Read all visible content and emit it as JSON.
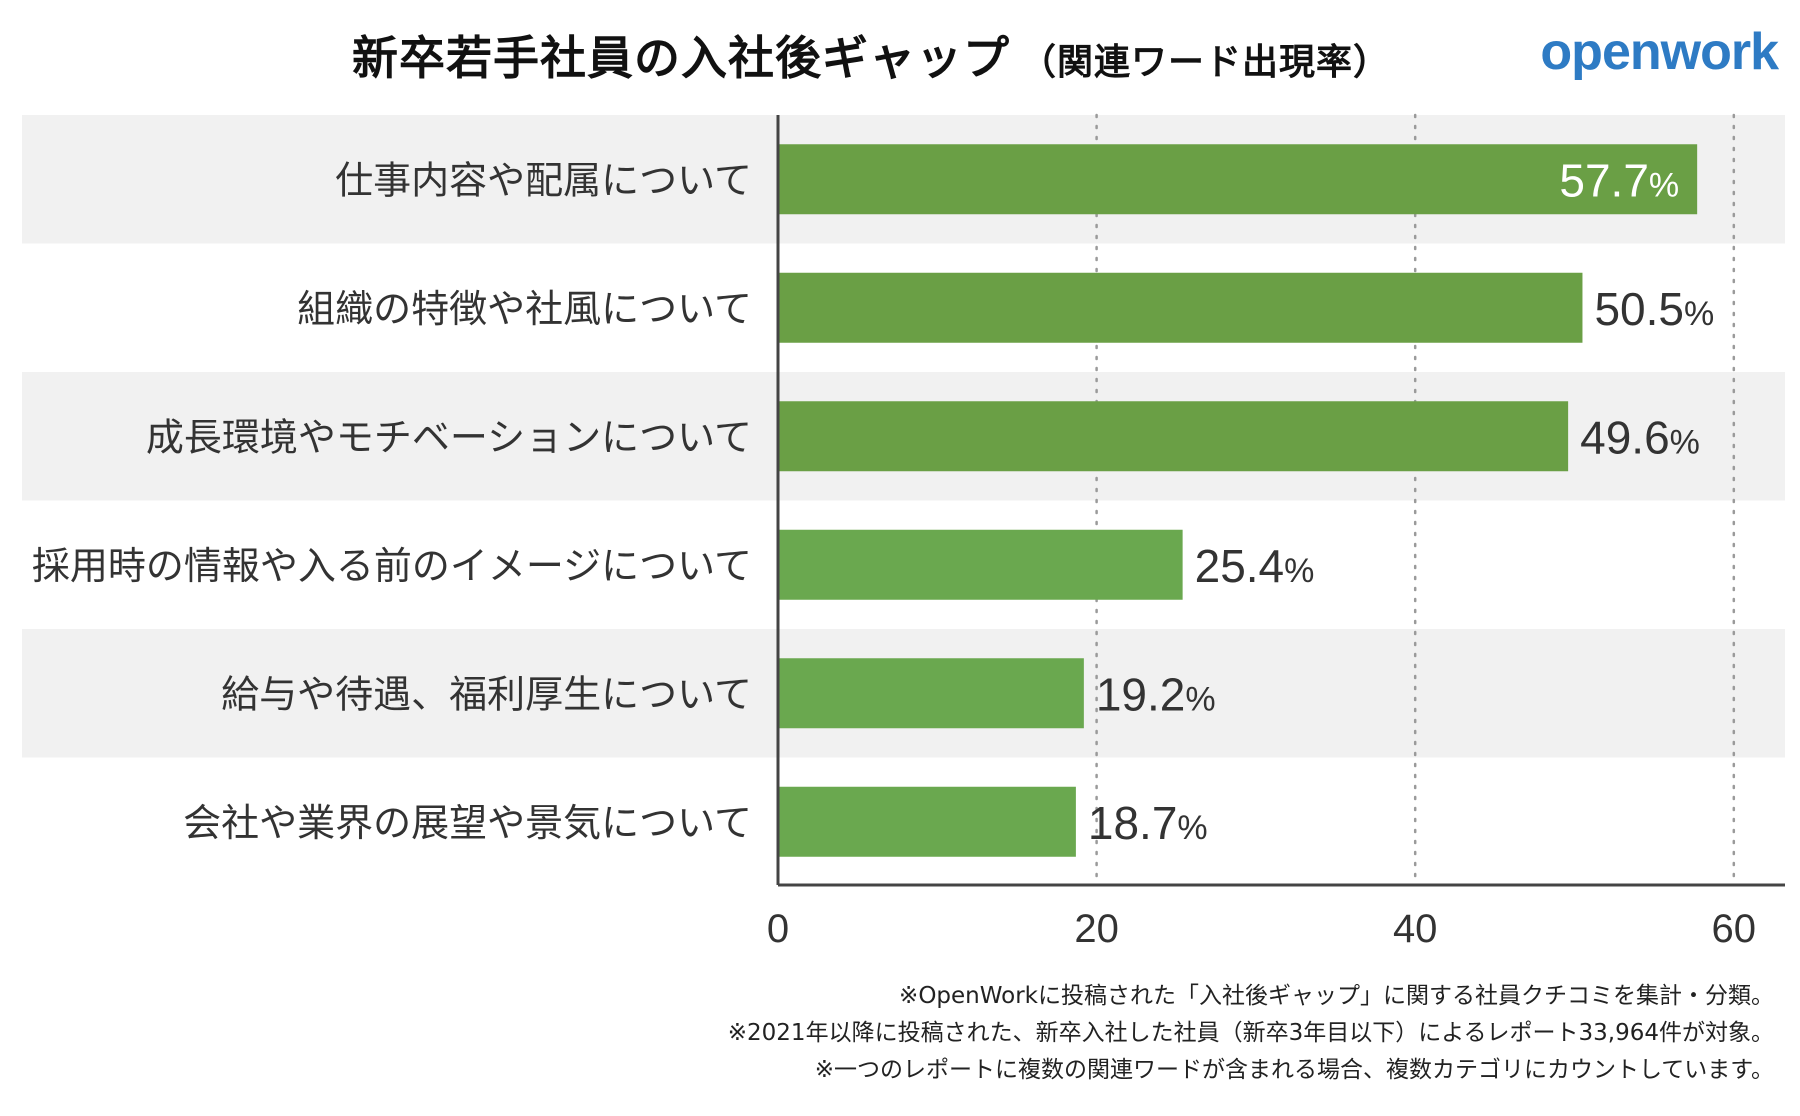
{
  "title": "新卒若手社員の入社後ギャップ",
  "subtitle": "（関連ワード出現率）",
  "brand": "openwork",
  "colors": {
    "bar": "#6aa84f",
    "bar_top": "#6a9f45",
    "band": "#f1f1f1",
    "axis": "#444444",
    "grid": "#9a9a9a",
    "brand": "#2e7bc4"
  },
  "chart_data": {
    "type": "bar",
    "orientation": "horizontal",
    "categories": [
      "仕事内容や配属について",
      "組織の特徴や社風について",
      "成長環境やモチベーションについて",
      "採用時の情報や入る前のイメージについて",
      "給与や待遇、福利厚生について",
      "会社や業界の展望や景気について"
    ],
    "values": [
      57.7,
      50.5,
      49.6,
      25.4,
      19.2,
      18.7
    ],
    "value_labels": [
      "57.7%",
      "50.5%",
      "49.6%",
      "25.4%",
      "19.2%",
      "18.7%"
    ],
    "xlim": [
      0,
      63
    ],
    "xticks": [
      0,
      20,
      40,
      60
    ],
    "grid": "vertical dotted",
    "xlabel": "",
    "ylabel": ""
  },
  "notes": [
    "※OpenWorkに投稿された「入社後ギャップ」に関する社員クチコミを集計・分類。",
    "※2021年以降に投稿された、新卒入社した社員（新卒3年目以下）によるレポート33,964件が対象。",
    "※一つのレポートに複数の関連ワードが含まれる場合、複数カテゴリにカウントしています。"
  ]
}
